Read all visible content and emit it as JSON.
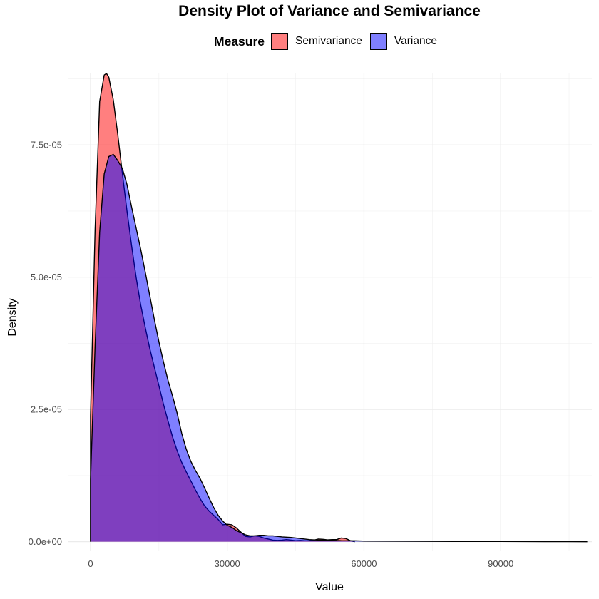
{
  "chart_data": {
    "type": "area",
    "title": "Density Plot of Variance and Semivariance",
    "xlabel": "Value",
    "ylabel": "Density",
    "xlim": [
      -5000,
      110000
    ],
    "ylim": [
      -1.8e-06,
      8.85e-05
    ],
    "x_ticks": [
      0,
      30000,
      60000,
      90000
    ],
    "x_tick_labels": [
      "0",
      "30000",
      "60000",
      "90000"
    ],
    "y_ticks": [
      0,
      2.5e-05,
      5e-05,
      7.5e-05
    ],
    "y_tick_labels": [
      "0.0e+00",
      "2.5e-05",
      "5.0e-05",
      "7.5e-05"
    ],
    "grid": true,
    "legend": {
      "title": "Measure",
      "position": "top"
    },
    "series": [
      {
        "name": "Semivariance",
        "color": "#FF0000",
        "alpha": 0.5,
        "x": [
          0,
          1000,
          2000,
          3000,
          3500,
          4000,
          5000,
          6000,
          7000,
          8000,
          9000,
          10000,
          11000,
          12000,
          13000,
          14000,
          15000,
          16000,
          17000,
          18000,
          19000,
          20000,
          21000,
          22000,
          23000,
          24000,
          25000,
          26000,
          27000,
          28000,
          29000,
          30000,
          31000,
          32000,
          33000,
          34000,
          35000,
          36000,
          37000,
          38000,
          39000,
          40000,
          41000,
          42000,
          43000,
          44000,
          45000,
          46000,
          47000,
          48000,
          49000,
          50000,
          51000,
          52000,
          53000,
          54000,
          55000,
          56000,
          57000,
          58000
        ],
        "y": [
          2.38e-05,
          5.9e-05,
          8.32e-05,
          8.82e-05,
          8.85e-05,
          8.78e-05,
          8.35e-05,
          7.68e-05,
          6.95e-05,
          6.25e-05,
          5.6e-05,
          5e-05,
          4.48e-05,
          4.05e-05,
          3.65e-05,
          3.3e-05,
          2.95e-05,
          2.6e-05,
          2.28e-05,
          1.98e-05,
          1.72e-05,
          1.5e-05,
          1.32e-05,
          1.15e-05,
          9.8e-06,
          8.2e-06,
          6.8e-06,
          5.8e-06,
          5e-06,
          4.2e-06,
          3.2e-06,
          3.3e-06,
          3.2e-06,
          2.6e-06,
          1.8e-06,
          1e-06,
          9e-07,
          1.1e-06,
          1e-06,
          7e-07,
          5e-07,
          3e-07,
          2.5e-07,
          3e-07,
          4e-07,
          3e-07,
          2e-07,
          2.5e-07,
          1.8e-07,
          2e-07,
          3e-07,
          5e-07,
          4.5e-07,
          3.5e-07,
          4e-07,
          4e-07,
          7e-07,
          6e-07,
          2e-07,
          0
        ]
      },
      {
        "name": "Variance",
        "color": "#0000FF",
        "alpha": 0.5,
        "x": [
          0,
          1000,
          2000,
          3000,
          4000,
          5000,
          6000,
          7000,
          8000,
          9000,
          10000,
          11000,
          12000,
          13000,
          14000,
          15000,
          16000,
          17000,
          18000,
          19000,
          20000,
          21000,
          22000,
          23000,
          24000,
          25000,
          26000,
          27000,
          28000,
          29000,
          30000,
          31000,
          32000,
          33000,
          34000,
          35000,
          36000,
          37000,
          38000,
          39000,
          40000,
          42000,
          44000,
          46000,
          48000,
          50000,
          52000,
          55000,
          58000,
          60000,
          65000,
          70000,
          75000,
          80000,
          85000,
          90000,
          95000,
          100000,
          105000,
          109000
        ],
        "y": [
          1.17e-05,
          3.7e-05,
          5.85e-05,
          6.95e-05,
          7.28e-05,
          7.32e-05,
          7.2e-05,
          7.05e-05,
          6.75e-05,
          6.33e-05,
          5.93e-05,
          5.53e-05,
          5.1e-05,
          4.65e-05,
          4.2e-05,
          3.78e-05,
          3.4e-05,
          3.05e-05,
          2.75e-05,
          2.43e-05,
          2.05e-05,
          1.75e-05,
          1.52e-05,
          1.35e-05,
          1.2e-05,
          1.02e-05,
          8.3e-06,
          6.5e-06,
          5e-06,
          3.9e-06,
          3.1e-06,
          2.7e-06,
          2.1e-06,
          1.7e-06,
          1.3e-06,
          1.1e-06,
          1.1e-06,
          1.2e-06,
          1.2e-06,
          1.1e-06,
          1.1e-06,
          9e-07,
          8e-07,
          6e-07,
          4e-07,
          3e-07,
          3e-07,
          2e-07,
          1.8e-07,
          1.2e-07,
          9e-08,
          8e-08,
          6e-08,
          5e-08,
          4e-08,
          4e-08,
          3e-08,
          2e-08,
          1e-08,
          0
        ]
      }
    ]
  }
}
